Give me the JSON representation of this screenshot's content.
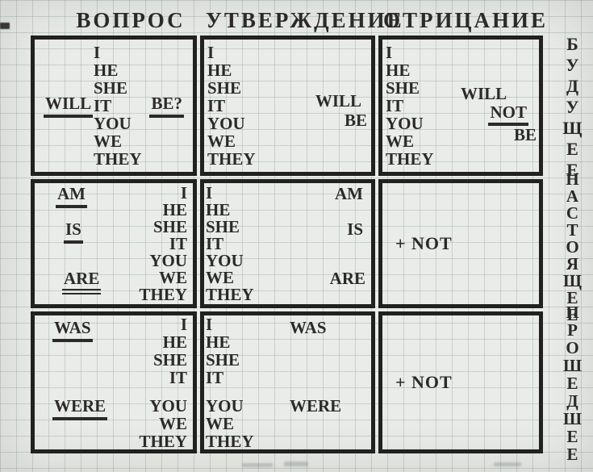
{
  "column_headers": [
    "ВОПРОС",
    "УТВЕРЖДЕНИЕ",
    "ОТРИЦАНИЕ"
  ],
  "tense_labels_vertical": [
    "БУДУЩЕЕ",
    "НАСТОЯЩЕЕ",
    "ПРОШЕДШЕЕ"
  ],
  "pronouns": [
    "I",
    "HE",
    "SHE",
    "IT",
    "YOU",
    "WE",
    "THEY"
  ],
  "words": {
    "will": "WILL",
    "be_question": "BE?",
    "be": "BE",
    "not": "NOT",
    "plus_not": "+ NOT",
    "am": "AM",
    "is": "IS",
    "are": "ARE",
    "was": "WAS",
    "were": "WERE"
  },
  "colors": {
    "ink": "#2b2a27",
    "border": "#212120",
    "paper": "#e9ece8",
    "grid_line": "#94a69c"
  }
}
